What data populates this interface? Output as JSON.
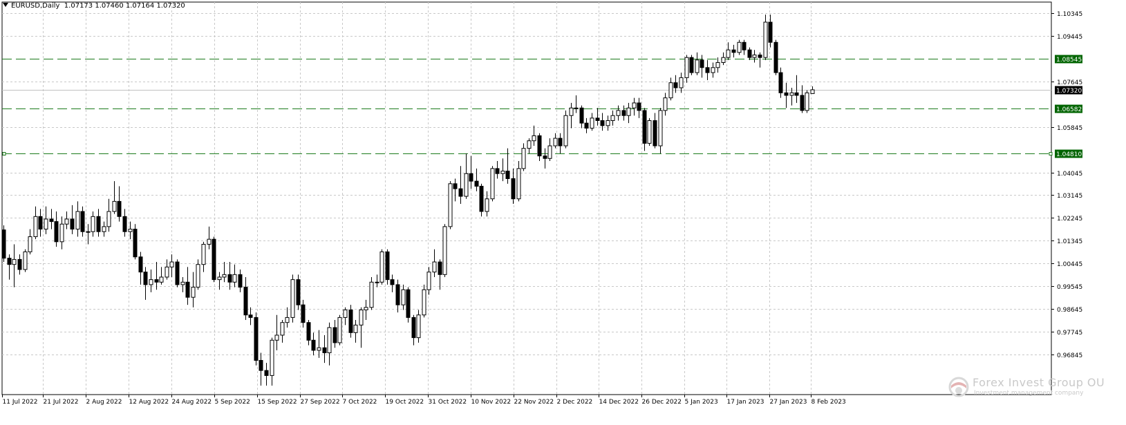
{
  "header": {
    "symbol": "EURUSD,Daily",
    "open": "1.07173",
    "high": "1.07460",
    "low": "1.07164",
    "close": "1.07320"
  },
  "watermark": {
    "name": "Forex Invest Group OU",
    "tagline": "Investment management company"
  },
  "colors": {
    "background": "#ffffff",
    "grid": "#c8c8c8",
    "candle": "#000000",
    "level_line": "#1a7a1a",
    "level_label_bg": "#006400",
    "current_price_bg": "#000000",
    "current_price_line": "#c0c0c0"
  },
  "chart_data": {
    "type": "candlestick",
    "instrument": "EURUSD",
    "timeframe": "Daily",
    "y_range": [
      0.95245,
      1.10795
    ],
    "y_ticks": [
      "1.10345",
      "1.09445",
      "1.07645",
      "1.05845",
      "1.04045",
      "1.03145",
      "1.02245",
      "1.01345",
      "1.00445",
      "0.99545",
      "0.98645",
      "0.97745",
      "0.96845"
    ],
    "x_ticks": [
      "11 Jul 2022",
      "21 Jul 2022",
      "2 Aug 2022",
      "12 Aug 2022",
      "24 Aug 2022",
      "5 Sep 2022",
      "15 Sep 2022",
      "27 Sep 2022",
      "7 Oct 2022",
      "19 Oct 2022",
      "31 Oct 2022",
      "10 Nov 2022",
      "22 Nov 2022",
      "2 Dec 2022",
      "14 Dec 2022",
      "26 Dec 2022",
      "5 Jan 2023",
      "17 Jan 2023",
      "27 Jan 2023",
      "8 Feb 2023"
    ],
    "current_price": "1.07320",
    "levels": [
      {
        "price": "1.08545"
      },
      {
        "price": "1.06582"
      },
      {
        "price": "1.04810"
      }
    ],
    "candles": [
      [
        1.0177,
        1.0195,
        1.005,
        1.0065
      ],
      [
        1.0065,
        1.008,
        0.998,
        1.004
      ],
      [
        1.004,
        1.012,
        0.995,
        1.006
      ],
      [
        1.006,
        1.008,
        1.0,
        1.002
      ],
      [
        1.002,
        1.01,
        1.001,
        1.009
      ],
      [
        1.009,
        1.018,
        1.008,
        1.015
      ],
      [
        1.015,
        1.027,
        1.014,
        1.023
      ],
      [
        1.023,
        1.026,
        1.015,
        1.018
      ],
      [
        1.018,
        1.027,
        1.016,
        1.022
      ],
      [
        1.022,
        1.026,
        1.018,
        1.021
      ],
      [
        1.021,
        1.025,
        1.011,
        1.013
      ],
      [
        1.013,
        1.023,
        1.01,
        1.02
      ],
      [
        1.02,
        1.025,
        1.018,
        1.022
      ],
      [
        1.022,
        1.0275,
        1.016,
        1.018
      ],
      [
        1.018,
        1.029,
        1.015,
        1.025
      ],
      [
        1.025,
        1.027,
        1.015,
        1.017
      ],
      [
        1.017,
        1.02,
        1.012,
        1.017
      ],
      [
        1.017,
        1.025,
        1.015,
        1.023
      ],
      [
        1.023,
        1.026,
        1.015,
        1.017
      ],
      [
        1.017,
        1.021,
        1.015,
        1.019
      ],
      [
        1.019,
        1.03,
        1.017,
        1.025
      ],
      [
        1.025,
        1.037,
        1.024,
        1.029
      ],
      [
        1.029,
        1.035,
        1.021,
        1.023
      ],
      [
        1.023,
        1.026,
        1.015,
        1.017
      ],
      [
        1.017,
        1.021,
        1.014,
        1.018
      ],
      [
        1.018,
        1.02,
        1.006,
        1.007
      ],
      [
        1.007,
        1.009,
        0.996,
        1.001
      ],
      [
        1.001,
        1.003,
        0.99,
        0.996
      ],
      [
        0.996,
        1.002,
        0.993,
        0.998
      ],
      [
        0.998,
        1.005,
        0.994,
        0.997
      ],
      [
        0.997,
        1.003,
        0.996,
        0.999
      ],
      [
        0.999,
        1.006,
        0.998,
        1.003
      ],
      [
        1.003,
        1.008,
        0.999,
        1.005
      ],
      [
        1.005,
        1.006,
        0.995,
        0.996
      ],
      [
        0.996,
        0.999,
        0.993,
        0.997
      ],
      [
        0.997,
        1.003,
        0.988,
        0.991
      ],
      [
        0.991,
        1.001,
        0.987,
        0.995
      ],
      [
        0.995,
        1.006,
        0.994,
        1.004
      ],
      [
        1.004,
        1.013,
        1.001,
        1.012
      ],
      [
        1.012,
        1.019,
        1.01,
        1.014
      ],
      [
        1.014,
        1.015,
        0.997,
        0.998
      ],
      [
        0.998,
        1.001,
        0.994,
        0.999
      ],
      [
        0.999,
        1.005,
        0.997,
        1.0
      ],
      [
        1.0,
        1.005,
        0.994,
        0.997
      ],
      [
        0.997,
        1.004,
        0.995,
        1.0
      ],
      [
        1.0,
        1.002,
        0.993,
        0.995
      ],
      [
        0.995,
        0.999,
        0.982,
        0.984
      ],
      [
        0.984,
        0.987,
        0.98,
        0.983
      ],
      [
        0.983,
        0.985,
        0.964,
        0.966
      ],
      [
        0.966,
        0.969,
        0.956,
        0.962
      ],
      [
        0.962,
        0.965,
        0.956,
        0.96
      ],
      [
        0.96,
        0.975,
        0.956,
        0.974
      ],
      [
        0.974,
        0.984,
        0.97,
        0.976
      ],
      [
        0.976,
        0.982,
        0.973,
        0.981
      ],
      [
        0.981,
        0.987,
        0.979,
        0.983
      ],
      [
        0.983,
        1.0,
        0.981,
        0.998
      ],
      [
        0.998,
        1.0,
        0.986,
        0.988
      ],
      [
        0.988,
        0.99,
        0.979,
        0.981
      ],
      [
        0.981,
        0.982,
        0.972,
        0.974
      ],
      [
        0.974,
        0.977,
        0.968,
        0.97
      ],
      [
        0.97,
        0.978,
        0.967,
        0.971
      ],
      [
        0.971,
        0.976,
        0.965,
        0.969
      ],
      [
        0.969,
        0.981,
        0.964,
        0.979
      ],
      [
        0.979,
        0.982,
        0.971,
        0.973
      ],
      [
        0.973,
        0.984,
        0.972,
        0.983
      ],
      [
        0.983,
        0.987,
        0.98,
        0.986
      ],
      [
        0.986,
        0.988,
        0.975,
        0.977
      ],
      [
        0.977,
        0.982,
        0.973,
        0.98
      ],
      [
        0.98,
        0.987,
        0.971,
        0.986
      ],
      [
        0.986,
        0.99,
        0.982,
        0.987
      ],
      [
        0.987,
        0.999,
        0.986,
        0.997
      ],
      [
        0.997,
        1.0,
        0.995,
        0.997
      ],
      [
        0.997,
        1.01,
        0.996,
        1.009
      ],
      [
        1.009,
        1.01,
        0.996,
        0.998
      ],
      [
        0.998,
        1.0,
        0.993,
        0.996
      ],
      [
        0.996,
        0.998,
        0.985,
        0.988
      ],
      [
        0.988,
        0.996,
        0.986,
        0.994
      ],
      [
        0.994,
        0.995,
        0.981,
        0.983
      ],
      [
        0.983,
        0.984,
        0.972,
        0.975
      ],
      [
        0.975,
        0.986,
        0.973,
        0.984
      ],
      [
        0.984,
        0.996,
        0.983,
        0.994
      ],
      [
        0.994,
        1.003,
        0.992,
        1.001
      ],
      [
        1.001,
        1.01,
        0.999,
        1.005
      ],
      [
        1.005,
        1.006,
        0.994,
        1.0
      ],
      [
        1.0,
        1.02,
        0.999,
        1.019
      ],
      [
        1.019,
        1.037,
        1.018,
        1.036
      ],
      [
        1.036,
        1.038,
        1.029,
        1.034
      ],
      [
        1.034,
        1.043,
        1.028,
        1.031
      ],
      [
        1.031,
        1.048,
        1.03,
        1.04
      ],
      [
        1.04,
        1.047,
        1.034,
        1.037
      ],
      [
        1.037,
        1.042,
        1.033,
        1.035
      ],
      [
        1.035,
        1.036,
        1.023,
        1.025
      ],
      [
        1.025,
        1.033,
        1.023,
        1.03
      ],
      [
        1.03,
        1.043,
        1.029,
        1.042
      ],
      [
        1.042,
        1.045,
        1.038,
        1.04
      ],
      [
        1.04,
        1.046,
        1.037,
        1.041
      ],
      [
        1.041,
        1.05,
        1.036,
        1.038
      ],
      [
        1.038,
        1.042,
        1.028,
        1.03
      ],
      [
        1.03,
        1.045,
        1.029,
        1.042
      ],
      [
        1.042,
        1.052,
        1.041,
        1.05
      ],
      [
        1.05,
        1.054,
        1.048,
        1.053
      ],
      [
        1.053,
        1.059,
        1.051,
        1.055
      ],
      [
        1.055,
        1.056,
        1.045,
        1.047
      ],
      [
        1.047,
        1.05,
        1.042,
        1.046
      ],
      [
        1.046,
        1.054,
        1.045,
        1.051
      ],
      [
        1.051,
        1.056,
        1.05,
        1.054
      ],
      [
        1.054,
        1.056,
        1.048,
        1.051
      ],
      [
        1.051,
        1.065,
        1.05,
        1.063
      ],
      [
        1.063,
        1.068,
        1.058,
        1.066
      ],
      [
        1.066,
        1.071,
        1.064,
        1.066
      ],
      [
        1.066,
        1.067,
        1.058,
        1.06
      ],
      [
        1.06,
        1.062,
        1.056,
        1.058
      ],
      [
        1.058,
        1.064,
        1.057,
        1.062
      ],
      [
        1.062,
        1.066,
        1.059,
        1.061
      ],
      [
        1.061,
        1.064,
        1.057,
        1.059
      ],
      [
        1.059,
        1.063,
        1.057,
        1.061
      ],
      [
        1.061,
        1.065,
        1.059,
        1.063
      ],
      [
        1.063,
        1.067,
        1.061,
        1.065
      ],
      [
        1.065,
        1.067,
        1.061,
        1.063
      ],
      [
        1.063,
        1.068,
        1.06,
        1.066
      ],
      [
        1.066,
        1.07,
        1.063,
        1.068
      ],
      [
        1.068,
        1.07,
        1.062,
        1.065
      ],
      [
        1.065,
        1.066,
        1.049,
        1.052
      ],
      [
        1.052,
        1.062,
        1.051,
        1.061
      ],
      [
        1.061,
        1.064,
        1.05,
        1.051
      ],
      [
        1.051,
        1.066,
        1.048,
        1.065
      ],
      [
        1.065,
        1.072,
        1.063,
        1.07
      ],
      [
        1.07,
        1.078,
        1.069,
        1.076
      ],
      [
        1.076,
        1.079,
        1.072,
        1.074
      ],
      [
        1.074,
        1.08,
        1.072,
        1.078
      ],
      [
        1.078,
        1.087,
        1.076,
        1.086
      ],
      [
        1.086,
        1.087,
        1.079,
        1.08
      ],
      [
        1.08,
        1.088,
        1.079,
        1.085
      ],
      [
        1.085,
        1.087,
        1.078,
        1.082
      ],
      [
        1.082,
        1.085,
        1.077,
        1.08
      ],
      [
        1.08,
        1.084,
        1.078,
        1.082
      ],
      [
        1.082,
        1.086,
        1.08,
        1.084
      ],
      [
        1.084,
        1.088,
        1.083,
        1.086
      ],
      [
        1.086,
        1.092,
        1.085,
        1.089
      ],
      [
        1.089,
        1.091,
        1.086,
        1.088
      ],
      [
        1.088,
        1.093,
        1.087,
        1.092
      ],
      [
        1.092,
        1.093,
        1.087,
        1.089
      ],
      [
        1.089,
        1.09,
        1.085,
        1.086
      ],
      [
        1.086,
        1.089,
        1.084,
        1.087
      ],
      [
        1.087,
        1.088,
        1.082,
        1.086
      ],
      [
        1.086,
        1.103,
        1.085,
        1.1
      ],
      [
        1.1,
        1.103,
        1.09,
        1.092
      ],
      [
        1.092,
        1.093,
        1.079,
        1.08
      ],
      [
        1.08,
        1.082,
        1.07,
        1.072
      ],
      [
        1.072,
        1.076,
        1.066,
        1.071
      ],
      [
        1.071,
        1.074,
        1.067,
        1.072
      ],
      [
        1.072,
        1.079,
        1.068,
        1.071
      ],
      [
        1.071,
        1.075,
        1.064,
        1.065
      ],
      [
        1.065,
        1.073,
        1.064,
        1.072
      ],
      [
        1.0717,
        1.0746,
        1.0716,
        1.0732
      ]
    ]
  }
}
